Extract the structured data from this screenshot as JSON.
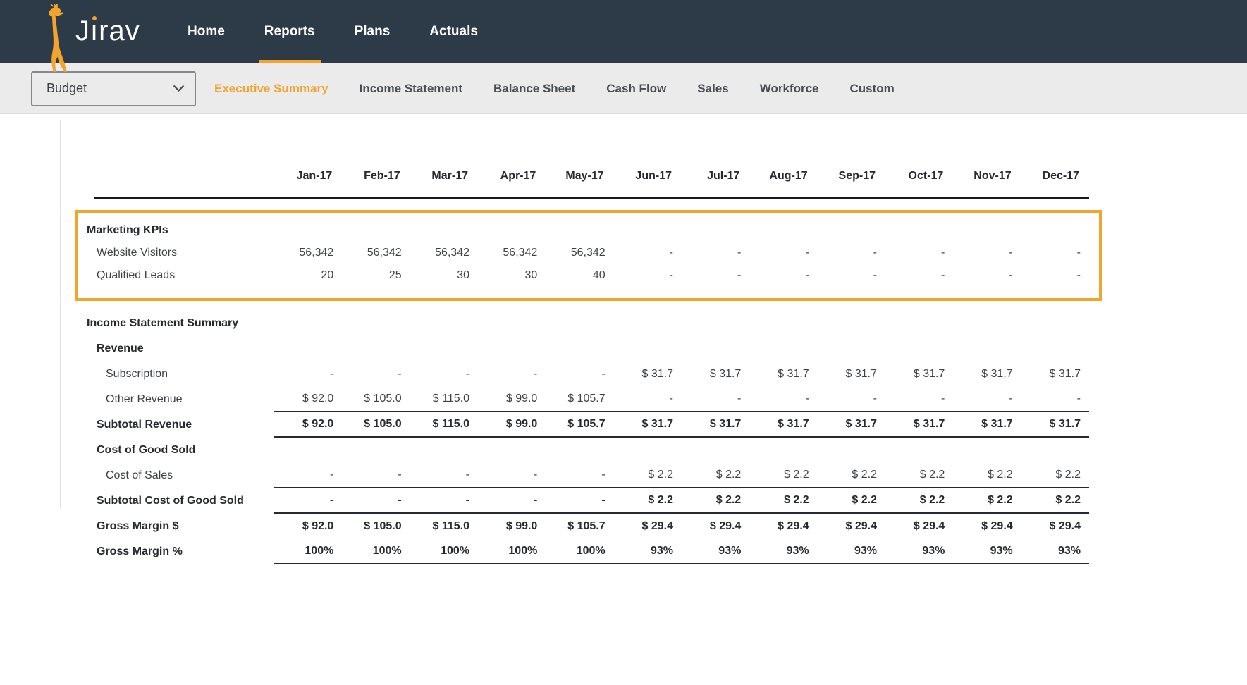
{
  "brand": {
    "name": "Jirav",
    "logo_icon": "giraffe-icon"
  },
  "colors": {
    "navbar_background": "#2d3b49",
    "accent_orange": "#F2A42D",
    "subnav_background": "#ebebeb",
    "highlight_border": "#F2A42D",
    "table_text": "#3e4247",
    "table_bold_text": "#26292e"
  },
  "top_nav": {
    "items": [
      {
        "label": "Home",
        "active": false
      },
      {
        "label": "Reports",
        "active": true
      },
      {
        "label": "Plans",
        "active": false
      },
      {
        "label": "Actuals",
        "active": false
      }
    ]
  },
  "report_nav": {
    "scenario_selector": {
      "value": "Budget",
      "icon": "chevron-down-icon"
    },
    "tabs": [
      "Executive Summary",
      "Income Statement",
      "Balance Sheet",
      "Cash Flow",
      "Sales",
      "Workforce",
      "Custom"
    ],
    "active_tab": "Executive Summary"
  },
  "table": {
    "columns": [
      "Jan-17",
      "Feb-17",
      "Mar-17",
      "Apr-17",
      "May-17",
      "Jun-17",
      "Jul-17",
      "Aug-17",
      "Sep-17",
      "Oct-17",
      "Nov-17",
      "Dec-17"
    ],
    "sections": [
      {
        "name": "marketing-kpis",
        "highlighted": true,
        "rows": [
          {
            "label": "Marketing KPIs",
            "style": "section-title",
            "indent": 0,
            "values": null
          },
          {
            "label": "Website Visitors",
            "style": "item",
            "indent": 1,
            "values": [
              "56,342",
              "56,342",
              "56,342",
              "56,342",
              "56,342",
              "-",
              "-",
              "-",
              "-",
              "-",
              "-",
              "-"
            ]
          },
          {
            "label": "Qualified Leads",
            "style": "item",
            "indent": 1,
            "values": [
              "20",
              "25",
              "30",
              "30",
              "40",
              "-",
              "-",
              "-",
              "-",
              "-",
              "-",
              "-"
            ]
          }
        ]
      },
      {
        "name": "income-statement-summary",
        "highlighted": false,
        "rows": [
          {
            "label": "Income Statement Summary",
            "style": "section-title",
            "indent": 0,
            "values": null
          },
          {
            "label": "Revenue",
            "style": "group-title",
            "indent": 1,
            "values": null
          },
          {
            "label": "Subscription",
            "style": "item",
            "indent": 2,
            "values": [
              "-",
              "-",
              "-",
              "-",
              "-",
              "$ 31.7",
              "$ 31.7",
              "$ 31.7",
              "$ 31.7",
              "$ 31.7",
              "$ 31.7",
              "$ 31.7"
            ]
          },
          {
            "label": "Other Revenue",
            "style": "item",
            "indent": 2,
            "rule_below": true,
            "values": [
              "$ 92.0",
              "$ 105.0",
              "$ 115.0",
              "$ 99.0",
              "$ 105.7",
              "-",
              "-",
              "-",
              "-",
              "-",
              "-",
              "-"
            ]
          },
          {
            "label": "Subtotal Revenue",
            "style": "subtotal",
            "indent": 1,
            "rule_below": true,
            "values": [
              "$ 92.0",
              "$ 105.0",
              "$ 115.0",
              "$ 99.0",
              "$ 105.7",
              "$ 31.7",
              "$ 31.7",
              "$ 31.7",
              "$ 31.7",
              "$ 31.7",
              "$ 31.7",
              "$ 31.7"
            ]
          },
          {
            "label": "Cost of Good Sold",
            "style": "group-title",
            "indent": 1,
            "values": null
          },
          {
            "label": "Cost of Sales",
            "style": "item",
            "indent": 2,
            "rule_below": true,
            "values": [
              "-",
              "-",
              "-",
              "-",
              "-",
              "$ 2.2",
              "$ 2.2",
              "$ 2.2",
              "$ 2.2",
              "$ 2.2",
              "$ 2.2",
              "$ 2.2"
            ]
          },
          {
            "label": "Subtotal Cost of Good Sold",
            "style": "subtotal",
            "indent": 1,
            "rule_below": true,
            "values": [
              "-",
              "-",
              "-",
              "-",
              "-",
              "$ 2.2",
              "$ 2.2",
              "$ 2.2",
              "$ 2.2",
              "$ 2.2",
              "$ 2.2",
              "$ 2.2"
            ]
          },
          {
            "label": "Gross Margin $",
            "style": "subtotal",
            "indent": 1,
            "values": [
              "$ 92.0",
              "$ 105.0",
              "$ 115.0",
              "$ 99.0",
              "$ 105.7",
              "$ 29.4",
              "$ 29.4",
              "$ 29.4",
              "$ 29.4",
              "$ 29.4",
              "$ 29.4",
              "$ 29.4"
            ]
          },
          {
            "label": "Gross Margin %",
            "style": "subtotal",
            "indent": 1,
            "rule_below": true,
            "values": [
              "100%",
              "100%",
              "100%",
              "100%",
              "100%",
              "93%",
              "93%",
              "93%",
              "93%",
              "93%",
              "93%",
              "93%"
            ]
          }
        ]
      }
    ]
  }
}
